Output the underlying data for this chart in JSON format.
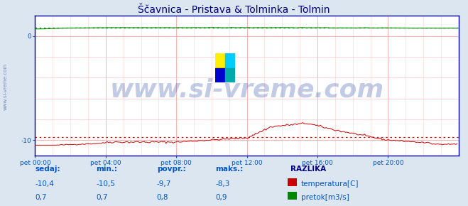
{
  "title": "Ščavnica - Pristava & Tolminka - Tolmin",
  "title_color": "#000080",
  "title_fontsize": 10,
  "bg_color": "#dce6f0",
  "plot_bg_color": "#ffffff",
  "grid_color_h": "#ffbbbb",
  "grid_color_v": "#ffcccc",
  "xlim": [
    0,
    288
  ],
  "ylim": [
    -11.5,
    2.0
  ],
  "xtick_labels": [
    "pet 00:00",
    "pet 04:00",
    "pet 08:00",
    "pet 12:00",
    "pet 16:00",
    "pet 20:00"
  ],
  "xtick_positions": [
    0,
    48,
    96,
    144,
    192,
    240
  ],
  "ytick_positions": [
    -10,
    0
  ],
  "ytick_labels": [
    "-10",
    "0"
  ],
  "temp_color": "#cc0000",
  "flow_color": "#008800",
  "watermark_text": "www.si-vreme.com",
  "watermark_color": "#3355aa",
  "watermark_alpha": 0.3,
  "watermark_fontsize": 26,
  "sidebar_text": "www.si-vreme.com",
  "sidebar_color": "#4466aa",
  "legend_labels": [
    "temperatura[C]",
    "pretok[m3/s]"
  ],
  "legend_colors": [
    "#cc0000",
    "#008800"
  ],
  "stats_headers": [
    "sedaj:",
    "min.:",
    "povpr.:",
    "maks.:"
  ],
  "stats_temp": [
    "-10,4",
    "-10,5",
    "-9,7",
    "-8,3"
  ],
  "stats_flow": [
    "0,7",
    "0,7",
    "0,8",
    "0,9"
  ],
  "stats_color": "#0055cc",
  "razlika_label": "RAZLIKA",
  "razlika_color": "#000088",
  "temp_avg": -9.7,
  "flow_avg": 0.8,
  "n_points": 288,
  "spine_color": "#0000aa",
  "separator_color": "#0000cc"
}
